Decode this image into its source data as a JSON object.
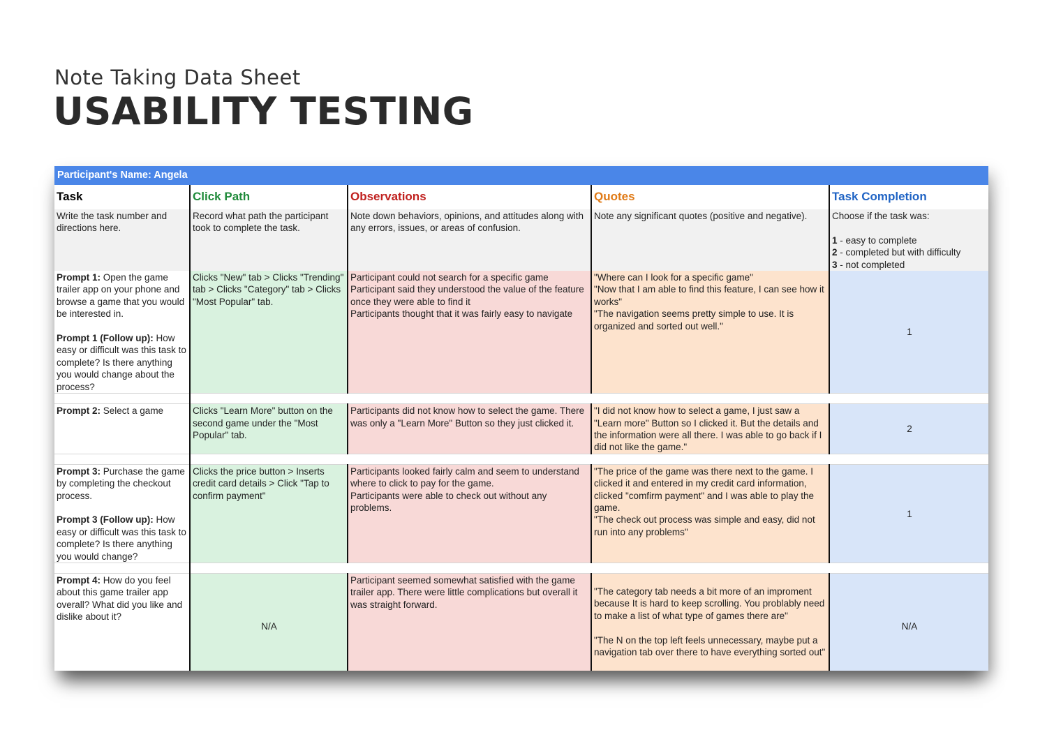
{
  "header": {
    "subtitle": "Note Taking Data Sheet",
    "title": "USABILITY TESTING"
  },
  "sheet": {
    "participant": "Participant's Name: Angela",
    "columns": {
      "task": "Task",
      "click_path": "Click Path",
      "observations": "Observations",
      "quotes": "Quotes",
      "completion": "Task Completion"
    },
    "descriptions": {
      "task": "Write the task number and directions here.",
      "click_path": "Record what path the participant took to complete the task.",
      "observations": "Note down behaviors, opinions, and attitudes along with any errors, issues, or areas of confusion.",
      "quotes": "Note any significant quotes (positive and negative).",
      "completion_intro": "Choose if the task was:",
      "completion_options": [
        {
          "num": "1",
          "text": " - easy to complete"
        },
        {
          "num": "2",
          "text": " - completed but with difficulty"
        },
        {
          "num": "3",
          "text": " - not completed"
        }
      ]
    },
    "rows": [
      {
        "prompt_label": "Prompt 1:",
        "prompt_text": " Open the game trailer app on your phone and browse a game that you would be interested in.",
        "followup_label": "Prompt 1 (Follow up):",
        "followup_text": " How easy or difficult was this task to complete? Is there anything you would change about the process?",
        "click_path": "Clicks \"New\" tab > Clicks \"Trending\" tab > Clicks \"Category\" tab > Clicks \"Most Popular\" tab.",
        "observations": [
          "Participant could not search for a specific game",
          "Participant said they understood the value of the feature once they were able to find it",
          "Participants thought that it was fairly easy to navigate"
        ],
        "quotes": [
          "\"Where can I look for a specific game\"",
          "\"Now that I am able to find this feature, I can see how it works\"",
          "\"The navigation seems pretty simple to use. It is organized and sorted out well.\""
        ],
        "completion": "1"
      },
      {
        "prompt_label": "Prompt 2:",
        "prompt_text": " Select a game",
        "click_path": "Clicks \"Learn More\" button on the second game under the \"Most Popular\" tab.",
        "observations": [
          "Participants did not know how to select the game. There was only a \"Learn More\" Button so they just clicked it."
        ],
        "quotes": [
          "\"I did not know how to select a game, I just saw a \"Learn more\" Button so I clicked it. But the details and the information were all there. I was able to go back if I did not like the game.\""
        ],
        "completion": "2"
      },
      {
        "prompt_label": "Prompt 3:",
        "prompt_text": " Purchase the game by completing the checkout process.",
        "followup_label": "Prompt 3 (Follow up):",
        "followup_text": " How easy or difficult was this task to complete? Is there anything you would change?",
        "click_path": "Clicks the price button > Inserts credit card details > Click \"Tap to confirm payment\"",
        "observations": [
          "Participants looked fairly calm and seem to understand where to click to pay for the game.",
          "Participants were able to check out without any problems."
        ],
        "quotes": [
          "\"The price of the game was there next to the game. I clicked it and entered in my credit card information, clicked \"comfirm payment\" and I was able to play the game.",
          "\"The check out process was simple and easy, did not run into any problems\""
        ],
        "completion": "1"
      },
      {
        "prompt_label": "Prompt 4:",
        "prompt_text": " How do you feel about this game trailer app overall? What did you like and dislike about it?",
        "click_path": "N/A",
        "observations": [
          "Participant seemed somewhat satisfied with the game trailer app. There were little complications but overall it was straight forward."
        ],
        "quotes": [
          "\"The category tab needs a bit more of an improment because It is hard to keep scrolling. You problably need to make a list of what type of games there are\"",
          "\"The N on the top left feels unnecessary, maybe put a navigation tab over there to have everything sorted out\""
        ],
        "completion": "N/A"
      }
    ]
  }
}
